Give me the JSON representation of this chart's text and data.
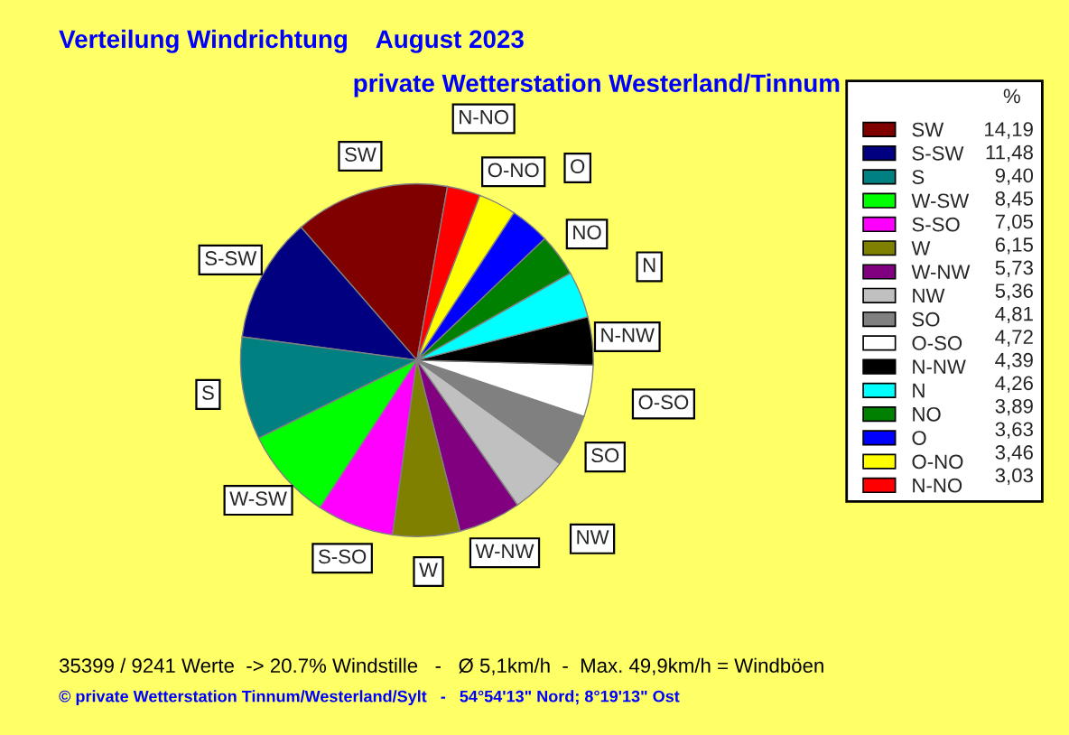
{
  "chart_data": {
    "type": "pie",
    "title": "Verteilung Windrichtung    August 2023",
    "subtitle": "private Wetterstation Westerland/Tinnum",
    "legend_title": "%",
    "legend": "right",
    "categories": [
      "SW",
      "S-SW",
      "S",
      "W-SW",
      "S-SO",
      "W",
      "W-NW",
      "NW",
      "SO",
      "O-SO",
      "N-NW",
      "N",
      "NO",
      "O",
      "O-NO",
      "N-NO"
    ],
    "values": [
      14.19,
      11.48,
      9.4,
      8.45,
      7.05,
      6.15,
      5.73,
      5.36,
      4.81,
      4.72,
      4.39,
      4.26,
      3.89,
      3.63,
      3.46,
      3.03
    ],
    "value_labels": [
      "14,19",
      "11,48",
      "9,40",
      "8,45",
      "7,05",
      "6,15",
      "5,73",
      "5,36",
      "4,81",
      "4,72",
      "4,39",
      "4,26",
      "3,89",
      "3,63",
      "3,46",
      "3,03"
    ],
    "colors": [
      "#800000",
      "#000080",
      "#008080",
      "#00ff00",
      "#ff00ff",
      "#808000",
      "#800080",
      "#c0c0c0",
      "#808080",
      "#ffffff",
      "#000000",
      "#00ffff",
      "#008000",
      "#0000ff",
      "#ffff00",
      "#ff0000"
    ],
    "annotations": [
      "35399 / 9241 Werte  -> 20.7% Windstille   -   Ø 5,1km/h  -  Max. 49,9km/h = Windböen",
      "© private Wetterstation Tinnum/Westerland/Sylt   -   54°54'13\" Nord; 8°19'13\" Ost"
    ]
  }
}
